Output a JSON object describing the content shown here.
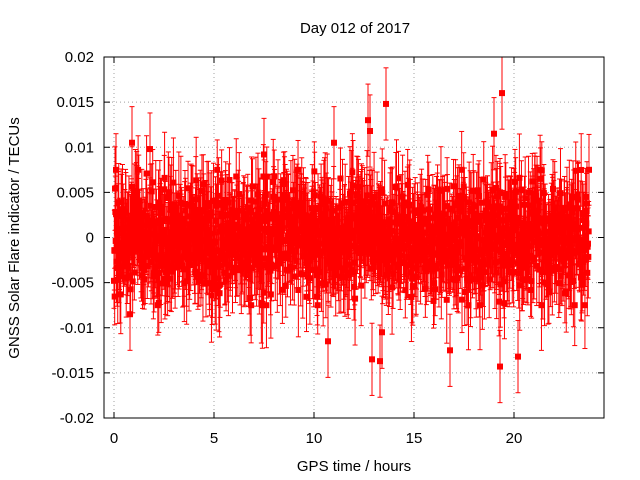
{
  "chart_data": {
    "type": "scatter",
    "title": "Day 012 of 2017",
    "xlabel": "GPS time / hours",
    "ylabel": "GNSS Solar Flare indicator / TECUs",
    "xlim": [
      -0.5,
      24.5
    ],
    "ylim": [
      -0.02,
      0.02
    ],
    "xticks": [
      0,
      5,
      10,
      15,
      20
    ],
    "xtick_labels": [
      "0",
      "5",
      "10",
      "15",
      "20"
    ],
    "yticks": [
      0.02,
      0.015,
      0.01,
      0.005,
      0,
      -0.005,
      -0.01,
      -0.015,
      -0.02
    ],
    "ytick_labels": [
      "0.02",
      "0.015",
      "0.01",
      "0.005",
      "0",
      "-0.005",
      "-0.01",
      "-0.015",
      "-0.02"
    ],
    "grid": true,
    "legend": "none",
    "series_color": "#ff0000",
    "series": [
      {
        "style": "points with error bars",
        "x_range_hours": [
          0,
          23.75
        ],
        "typical_spread": [
          -0.006,
          0.006
        ],
        "typical_error": 0.004,
        "points": [
          {
            "x": 0.1,
            "y": 0.0075,
            "err": 0.004
          },
          {
            "x": 0.8,
            "y": -0.0085,
            "err": 0.004
          },
          {
            "x": 0.9,
            "y": 0.0105,
            "err": 0.004
          },
          {
            "x": 1.8,
            "y": 0.0098,
            "err": 0.004
          },
          {
            "x": 7.5,
            "y": 0.0092,
            "err": 0.004
          },
          {
            "x": 10.7,
            "y": -0.0115,
            "err": 0.004
          },
          {
            "x": 11.0,
            "y": 0.0105,
            "err": 0.004
          },
          {
            "x": 12.7,
            "y": 0.013,
            "err": 0.004
          },
          {
            "x": 12.8,
            "y": 0.0118,
            "err": 0.004
          },
          {
            "x": 12.9,
            "y": -0.0135,
            "err": 0.004
          },
          {
            "x": 13.3,
            "y": -0.0137,
            "err": 0.004
          },
          {
            "x": 13.4,
            "y": -0.0105,
            "err": 0.004
          },
          {
            "x": 13.6,
            "y": 0.0148,
            "err": 0.004
          },
          {
            "x": 16.8,
            "y": -0.0125,
            "err": 0.004
          },
          {
            "x": 19.4,
            "y": 0.016,
            "err": 0.004
          },
          {
            "x": 19.3,
            "y": -0.0143,
            "err": 0.004
          },
          {
            "x": 20.2,
            "y": -0.0132,
            "err": 0.004
          },
          {
            "x": 19.0,
            "y": 0.0115,
            "err": 0.004
          }
        ]
      }
    ]
  }
}
